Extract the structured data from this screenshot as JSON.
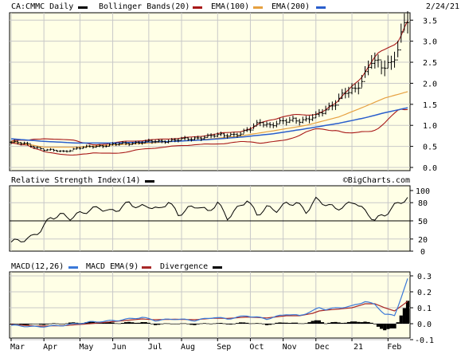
{
  "chart_data": [
    {
      "type": "line",
      "panel": "price",
      "title": "CA:CMMC Daily",
      "date_label": "2/24/21",
      "legend": [
        "Bollinger Bands(20)",
        "EMA(100)",
        "EMA(200)"
      ],
      "ylim": [
        0.0,
        3.6
      ],
      "yticks": [
        "0.0",
        "0.5",
        "1.0",
        "1.5",
        "2.0",
        "2.5",
        "3.0",
        "3.5"
      ],
      "price_anchors": [
        [
          0,
          0.6
        ],
        [
          5,
          0.55
        ],
        [
          10,
          0.42
        ],
        [
          16,
          0.38
        ],
        [
          20,
          0.45
        ],
        [
          25,
          0.5
        ],
        [
          30,
          0.53
        ],
        [
          35,
          0.57
        ],
        [
          40,
          0.6
        ],
        [
          45,
          0.62
        ],
        [
          50,
          0.65
        ],
        [
          55,
          0.68
        ],
        [
          58,
          0.72
        ],
        [
          62,
          0.75
        ],
        [
          66,
          0.78
        ],
        [
          70,
          0.8
        ],
        [
          73,
          0.9
        ],
        [
          76,
          1.1
        ],
        [
          79,
          1.0
        ],
        [
          82,
          1.05
        ],
        [
          86,
          1.15
        ],
        [
          90,
          1.12
        ],
        [
          93,
          1.2
        ],
        [
          96,
          1.4
        ],
        [
          99,
          1.55
        ],
        [
          102,
          1.75
        ],
        [
          105,
          1.85
        ],
        [
          108,
          2.25
        ],
        [
          110,
          2.55
        ],
        [
          113,
          2.35
        ],
        [
          116,
          2.5
        ],
        [
          118,
          2.9
        ],
        [
          120,
          3.4
        ],
        [
          121,
          3.5
        ]
      ],
      "ema100_anchors": [
        [
          0,
          0.62
        ],
        [
          10,
          0.48
        ],
        [
          20,
          0.48
        ],
        [
          30,
          0.53
        ],
        [
          40,
          0.57
        ],
        [
          50,
          0.62
        ],
        [
          60,
          0.67
        ],
        [
          70,
          0.75
        ],
        [
          80,
          0.87
        ],
        [
          90,
          1.0
        ],
        [
          100,
          1.2
        ],
        [
          108,
          1.45
        ],
        [
          114,
          1.65
        ],
        [
          121,
          1.8
        ]
      ],
      "ema200_anchors": [
        [
          0,
          0.68
        ],
        [
          10,
          0.62
        ],
        [
          20,
          0.58
        ],
        [
          30,
          0.58
        ],
        [
          40,
          0.6
        ],
        [
          50,
          0.62
        ],
        [
          60,
          0.66
        ],
        [
          70,
          0.72
        ],
        [
          80,
          0.8
        ],
        [
          90,
          0.92
        ],
        [
          100,
          1.05
        ],
        [
          108,
          1.18
        ],
        [
          114,
          1.3
        ],
        [
          121,
          1.42
        ]
      ],
      "series_colors": {
        "price": "#000000",
        "bollinger": "#a81818",
        "ema100": "#e6a040",
        "ema200": "#2a5ecc"
      }
    },
    {
      "type": "line",
      "panel": "rsi",
      "title": "Relative Strength Index(14)",
      "watermark": "©BigCharts.com",
      "ylim": [
        0,
        100
      ],
      "yticks": [
        "100",
        "80",
        "50",
        "20",
        "0"
      ],
      "reference_line": 50,
      "rsi_anchors": [
        [
          0,
          15
        ],
        [
          3,
          18
        ],
        [
          6,
          22
        ],
        [
          9,
          35
        ],
        [
          12,
          55
        ],
        [
          15,
          60
        ],
        [
          18,
          55
        ],
        [
          21,
          62
        ],
        [
          24,
          68
        ],
        [
          27,
          72
        ],
        [
          30,
          65
        ],
        [
          33,
          70
        ],
        [
          36,
          80
        ],
        [
          39,
          72
        ],
        [
          42,
          75
        ],
        [
          45,
          68
        ],
        [
          48,
          82
        ],
        [
          51,
          60
        ],
        [
          54,
          70
        ],
        [
          57,
          75
        ],
        [
          60,
          65
        ],
        [
          63,
          80
        ],
        [
          66,
          55
        ],
        [
          69,
          70
        ],
        [
          72,
          85
        ],
        [
          75,
          60
        ],
        [
          78,
          72
        ],
        [
          81,
          68
        ],
        [
          84,
          78
        ],
        [
          87,
          80
        ],
        [
          90,
          65
        ],
        [
          93,
          85
        ],
        [
          96,
          78
        ],
        [
          99,
          70
        ],
        [
          102,
          75
        ],
        [
          105,
          82
        ],
        [
          108,
          65
        ],
        [
          111,
          52
        ],
        [
          114,
          60
        ],
        [
          117,
          75
        ],
        [
          121,
          88
        ]
      ]
    },
    {
      "type": "line",
      "panel": "macd",
      "title": "MACD(12,26)",
      "legend": [
        "MACD EMA(9)",
        "Divergence"
      ],
      "ylim": [
        -0.1,
        0.3
      ],
      "yticks": [
        "0.3",
        "0.2",
        "0.1",
        "0.0",
        "-0.1"
      ],
      "macd_anchors": [
        [
          0,
          -0.01
        ],
        [
          8,
          -0.02
        ],
        [
          16,
          -0.01
        ],
        [
          24,
          0.01
        ],
        [
          32,
          0.02
        ],
        [
          40,
          0.04
        ],
        [
          44,
          0.02
        ],
        [
          50,
          0.03
        ],
        [
          56,
          0.02
        ],
        [
          62,
          0.04
        ],
        [
          66,
          0.03
        ],
        [
          72,
          0.05
        ],
        [
          78,
          0.03
        ],
        [
          84,
          0.06
        ],
        [
          88,
          0.05
        ],
        [
          92,
          0.08
        ],
        [
          94,
          0.1
        ],
        [
          96,
          0.09
        ],
        [
          100,
          0.1
        ],
        [
          104,
          0.11
        ],
        [
          108,
          0.14
        ],
        [
          111,
          0.12
        ],
        [
          114,
          0.06
        ],
        [
          117,
          0.05
        ],
        [
          121,
          0.28
        ]
      ],
      "signal_anchors": [
        [
          0,
          -0.005
        ],
        [
          8,
          -0.015
        ],
        [
          16,
          -0.012
        ],
        [
          24,
          0.0
        ],
        [
          32,
          0.015
        ],
        [
          40,
          0.03
        ],
        [
          44,
          0.025
        ],
        [
          50,
          0.028
        ],
        [
          56,
          0.025
        ],
        [
          62,
          0.035
        ],
        [
          66,
          0.033
        ],
        [
          72,
          0.042
        ],
        [
          78,
          0.036
        ],
        [
          84,
          0.05
        ],
        [
          88,
          0.05
        ],
        [
          92,
          0.065
        ],
        [
          94,
          0.08
        ],
        [
          96,
          0.085
        ],
        [
          100,
          0.092
        ],
        [
          104,
          0.1
        ],
        [
          108,
          0.125
        ],
        [
          111,
          0.125
        ],
        [
          114,
          0.1
        ],
        [
          117,
          0.08
        ],
        [
          121,
          0.14
        ]
      ],
      "series_colors": {
        "macd": "#3a78d8",
        "signal": "#a82828",
        "divergence": "#000000"
      }
    }
  ],
  "x_axis": {
    "labels": [
      "Mar",
      "Apr",
      "May",
      "Jun",
      "Jul",
      "Aug",
      "Sep",
      "Oct",
      "Nov",
      "Dec",
      "21",
      "Feb"
    ]
  },
  "colors": {
    "plot_background": "#ffffe6",
    "grid": "#c8c8c8",
    "border": "#000000",
    "page": "#ffffff"
  }
}
